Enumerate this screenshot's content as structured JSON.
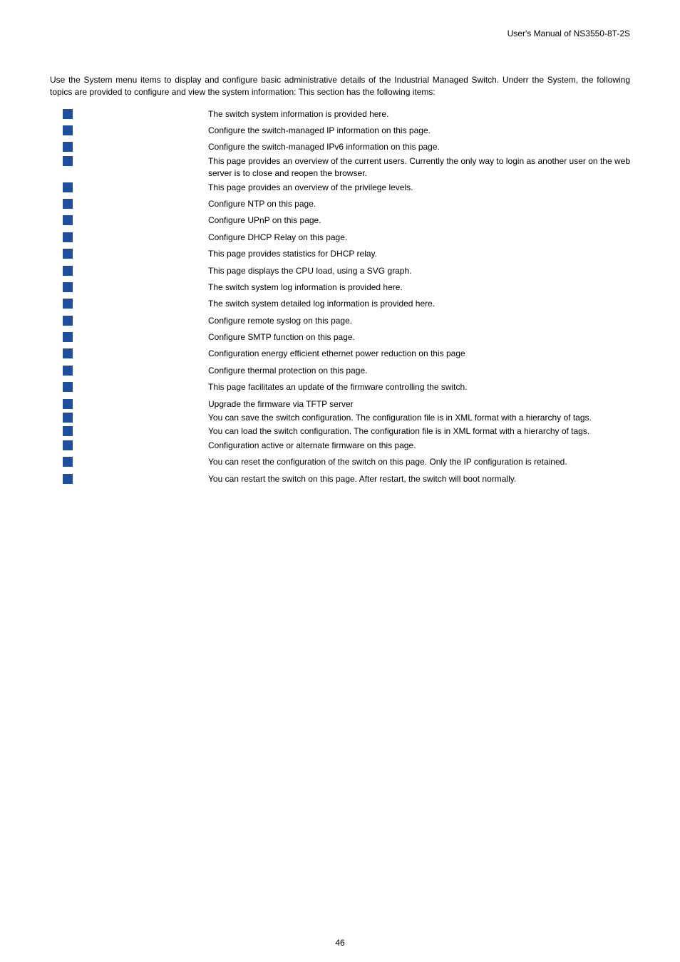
{
  "header": "User's  Manual  of  NS3550-8T-2S",
  "intro": "Use the System menu items to display and configure basic administrative details of the Industrial Managed Switch. Underr the System, the following topics are provided to configure and view the system information: This section has the following items:",
  "items": [
    {
      "desc": "The switch system information is provided here."
    },
    {
      "desc": "Configure the switch-managed IP information on this page."
    },
    {
      "desc": "Configure the switch-managed IPv6 information on this page.",
      "tight": true
    },
    {
      "desc": "This page provides an overview of the current users. Currently the only way to login as another user on the web server is to close and reopen the browser.",
      "tight": true
    },
    {
      "desc": "This page provides an overview of the privilege levels."
    },
    {
      "desc": "Configure NTP on this page."
    },
    {
      "desc": "Configure UPnP on this page."
    },
    {
      "desc": "Configure DHCP Relay on this page."
    },
    {
      "desc": "This page provides statistics for DHCP relay."
    },
    {
      "desc": "This page displays the CPU load, using a SVG graph."
    },
    {
      "desc": "The switch system log information is provided here."
    },
    {
      "desc": "The switch system detailed log information is provided here."
    },
    {
      "desc": "Configure remote syslog on this page."
    },
    {
      "desc": "Configure SMTP function on this page."
    },
    {
      "desc": "Configuration energy efficient ethernet power reduction on this page"
    },
    {
      "desc": "Configure thermal protection on this page."
    },
    {
      "desc": "This page facilitates an update of the firmware controlling the switch."
    },
    {
      "desc": "Upgrade the firmware via TFTP server",
      "tight": true
    },
    {
      "desc": "You can save the switch configuration. The configuration file is in XML format with a hierarchy of tags.",
      "tight": true
    },
    {
      "desc": "You can load the switch configuration. The configuration file is in XML format with a hierarchy of tags.",
      "tight": true
    },
    {
      "desc": "Configuration active or alternate firmware on this page."
    },
    {
      "desc": "You can reset the configuration of the switch on this page. Only the IP configuration is retained."
    },
    {
      "desc": "You can restart the switch on this page. After restart, the switch will boot normally."
    }
  ],
  "pageNumber": "46",
  "bulletColor": "#1f4e9c"
}
